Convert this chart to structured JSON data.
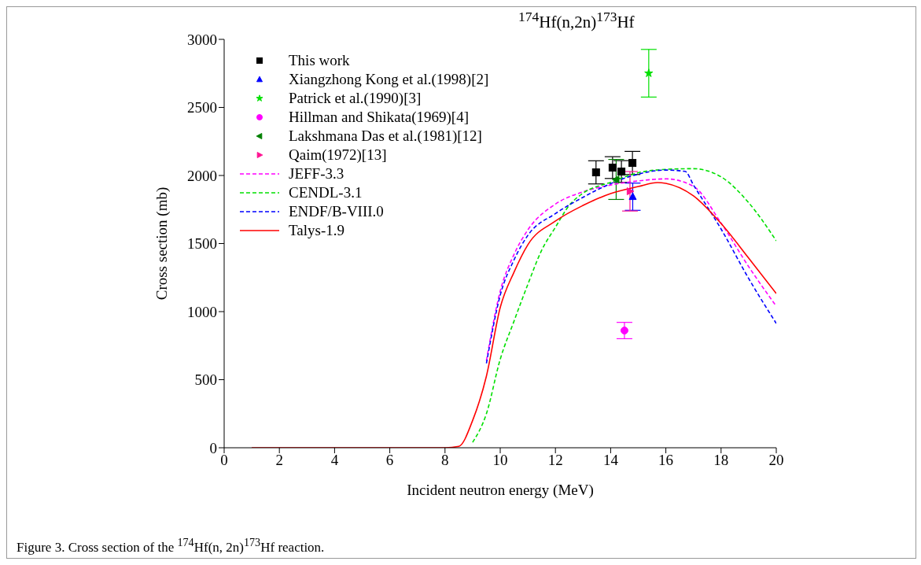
{
  "chart_data": {
    "type": "line",
    "title": "$^{174}$Hf(n,2n)$^{173}$Hf",
    "xlabel": "Incident neutron energy (MeV)",
    "ylabel": "Cross section (mb)",
    "xlim": [
      0,
      20
    ],
    "xticks": [
      0,
      2,
      4,
      6,
      8,
      10,
      12,
      14,
      16,
      18,
      20
    ],
    "ylim": [
      0,
      3000
    ],
    "yticks": [
      0,
      500,
      1000,
      1500,
      2000,
      2500,
      3000
    ],
    "grid": false,
    "legend": "top left",
    "annotations": [
      "Figure 3. Cross section of the $^{174}$Hf(n, 2n)$^{173}$Hf reaction."
    ],
    "series": [
      {
        "name": "This work",
        "type": "scatter",
        "color": "#000000",
        "marker": "square",
        "x": [
          13.47,
          14.07,
          14.39,
          14.79
        ],
        "values": [
          2023,
          2058,
          2029,
          2092
        ],
        "errors": [
          85,
          80,
          80,
          85
        ]
      },
      {
        "name": "Xiangzhong Kong et al.(1998)[2]",
        "type": "scatter",
        "color": "#0000ff",
        "marker": "triangle",
        "x": [
          14.8
        ],
        "values": [
          1844
        ],
        "errors": [
          100
        ]
      },
      {
        "name": "Patrick et al.(1990)[3]",
        "type": "scatter",
        "color": "#00e000",
        "marker": "star",
        "x": [
          15.38
        ],
        "values": [
          2751
        ],
        "errors": [
          175
        ]
      },
      {
        "name": "Hillman and Shikata(1969)[4]",
        "type": "scatter",
        "color": "#ff00ff",
        "marker": "circle",
        "x": [
          14.5
        ],
        "values": [
          861
        ],
        "errors": [
          60
        ]
      },
      {
        "name": "Lakshmana Das et al.(1981)[12]",
        "type": "scatter",
        "color": "#008000",
        "marker": "triangle-left",
        "x": [
          14.2
        ],
        "values": [
          1971
        ],
        "errors": [
          147
        ]
      },
      {
        "name": "Qaim(1972)[13]",
        "type": "scatter",
        "color": "#ff1493",
        "marker": "triangle-right",
        "x": [
          14.7
        ],
        "values": [
          1884
        ],
        "errors": [
          145
        ]
      },
      {
        "name": "JEFF-3.3",
        "color": "#ff00ff",
        "line_style": "dashed",
        "x": [
          9.5,
          10,
          10.5,
          11,
          12,
          13,
          14,
          15,
          16,
          17,
          18,
          19,
          20
        ],
        "values": [
          640,
          1150,
          1420,
          1600,
          1790,
          1880,
          1930,
          1960,
          1975,
          1920,
          1650,
          1330,
          1040
        ]
      },
      {
        "name": "CENDL-3.1",
        "color": "#00e000",
        "line_style": "dashed",
        "x": [
          9,
          9.5,
          10,
          10.5,
          11,
          11.5,
          12,
          12.5,
          13,
          14,
          15,
          16,
          17,
          18,
          19,
          20
        ],
        "values": [
          40,
          250,
          650,
          930,
          1200,
          1450,
          1620,
          1780,
          1870,
          1950,
          2020,
          2045,
          2050,
          1990,
          1800,
          1520
        ]
      },
      {
        "name": "ENDF/B-VIII.0",
        "color": "#0000ff",
        "line_style": "dashed",
        "x": [
          9.5,
          10,
          10.5,
          11,
          12,
          13,
          14,
          15,
          16,
          16.7,
          17,
          18,
          19,
          20
        ],
        "values": [
          620,
          1120,
          1380,
          1560,
          1720,
          1840,
          1940,
          2010,
          2040,
          2030,
          1930,
          1607,
          1243,
          913
        ]
      },
      {
        "name": "Talys-1.9",
        "color": "#ff0000",
        "line_style": "solid",
        "x": [
          1,
          8,
          8.5,
          9,
          9.5,
          10,
          10.5,
          11,
          12,
          13,
          14,
          15,
          15.7,
          16,
          17,
          18,
          19,
          20
        ],
        "values": [
          0,
          0,
          10,
          200,
          526,
          1030,
          1290,
          1491,
          1665,
          1780,
          1867,
          1919,
          1948,
          1942,
          1850,
          1647,
          1393,
          1133
        ]
      }
    ]
  }
}
